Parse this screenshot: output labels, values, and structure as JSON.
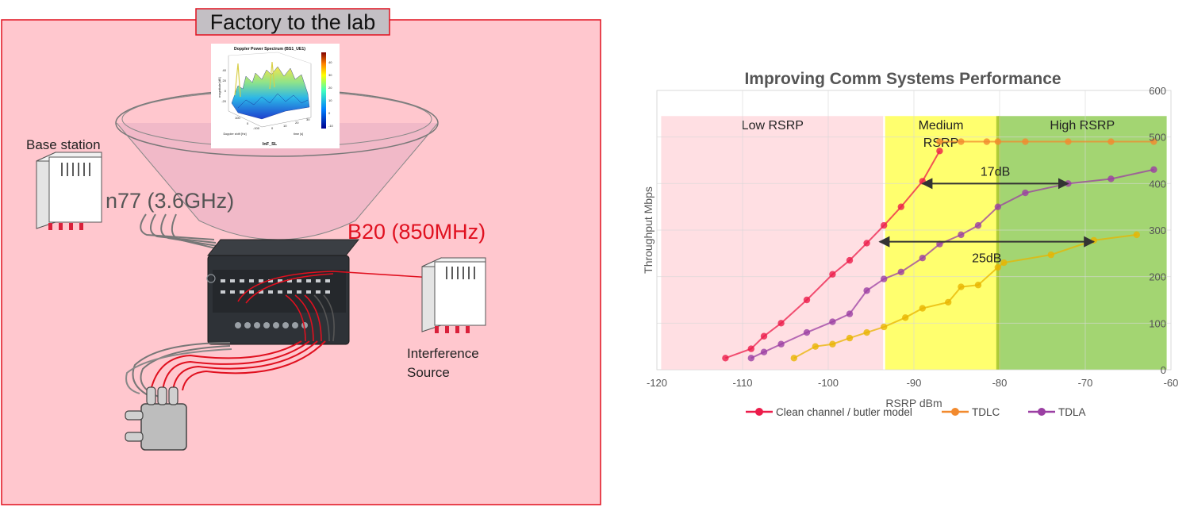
{
  "left_panel": {
    "title": "Factory to the lab",
    "base_station_label": "Base station",
    "n77_label": "n77 (3.6GHz)",
    "b20_label": "B20 (850MHz)",
    "interference_line1": "Interference",
    "interference_line2": "Source",
    "panel_color": "#ffc7ce",
    "border_color": "#e0101f",
    "inset": {
      "title": "Doppler Power Spectrum  (BS1_UE1)",
      "caption": "InF_SL",
      "ylabel": "magnitude [dB]",
      "xlabel": "Doppler shift [Hz]",
      "tlabel": "time [s]",
      "zticks": [
        "40",
        "20",
        "0",
        "-20"
      ],
      "xticks": [
        "100",
        "0",
        "-100"
      ],
      "tticks": [
        "0",
        "10",
        "20",
        "30"
      ],
      "colorbar_ticks": [
        "40",
        "30",
        "20",
        "10",
        "0",
        "-10"
      ]
    }
  },
  "chart_data": {
    "type": "line",
    "title": "Improving Comm Systems Performance",
    "xlabel": "RSRP dBm",
    "ylabel": "Throughput Mbps",
    "xlim": [
      -120,
      -60
    ],
    "ylim": [
      0,
      600
    ],
    "xticks": [
      -120,
      -110,
      -100,
      -90,
      -80,
      -70,
      -60
    ],
    "yticks": [
      0,
      100,
      200,
      300,
      400,
      500,
      600
    ],
    "grid": true,
    "legend_position": "bottom",
    "regions": [
      {
        "label": "Low RSRP",
        "x0": -119.5,
        "x1": -93.5,
        "color": "#ffdde2"
      },
      {
        "label": "Medium RSRP",
        "x0": -93.5,
        "x1": -80.2,
        "color": "#ffff66"
      },
      {
        "label": "High RSRP",
        "x0": -80.2,
        "x1": -60.5,
        "color": "#9ed36a"
      }
    ],
    "annotations": [
      {
        "label": "17dB",
        "from": [
          -89,
          400
        ],
        "to": [
          -72,
          400
        ]
      },
      {
        "label": "25dB",
        "from": [
          -94,
          275
        ],
        "to": [
          -69,
          275
        ]
      }
    ],
    "series": [
      {
        "name": "Clean channel / butler model",
        "color": "#ec1c4a",
        "x": [
          -112,
          -109,
          -107.5,
          -105.5,
          -102.5,
          -99.5,
          -97.5,
          -95.5,
          -93.5,
          -91.5,
          -89,
          -87
        ],
        "y": [
          25,
          45,
          72,
          100,
          150,
          205,
          235,
          272,
          310,
          350,
          405,
          470
        ]
      },
      {
        "name": "TDLC",
        "color": "#f28a2e",
        "x": [
          -87,
          -84.5,
          -81.5,
          -80.2,
          -77,
          -72,
          -67,
          -62
        ],
        "y": [
          490,
          490,
          490,
          490,
          490,
          490,
          490,
          490
        ]
      },
      {
        "name": "TDLA",
        "color": "#9b3fa3",
        "x": [
          -109,
          -107.5,
          -105.5,
          -102.5,
          -99.5,
          -97.5,
          -95.5,
          -93.5,
          -91.5,
          -89,
          -87,
          -84.5,
          -82.5,
          -80.2,
          -77,
          -72,
          -67,
          -62
        ],
        "y": [
          25,
          38,
          55,
          80,
          103,
          120,
          170,
          195,
          210,
          240,
          270,
          290,
          310,
          350,
          380,
          400,
          410,
          430
        ]
      },
      {
        "name": "",
        "color": "#e8b400",
        "x": [
          -104,
          -101.5,
          -99.5,
          -97.5,
          -95.5,
          -93.5,
          -91,
          -89,
          -86,
          -84.5,
          -82.5,
          -80.2,
          -79.5,
          -74,
          -69,
          -64
        ],
        "y": [
          25,
          50,
          55,
          68,
          80,
          92,
          112,
          132,
          145,
          178,
          182,
          220,
          230,
          247,
          278,
          290
        ]
      }
    ],
    "legend": [
      "Clean channel / butler model",
      "TDLC",
      "TDLA"
    ]
  }
}
